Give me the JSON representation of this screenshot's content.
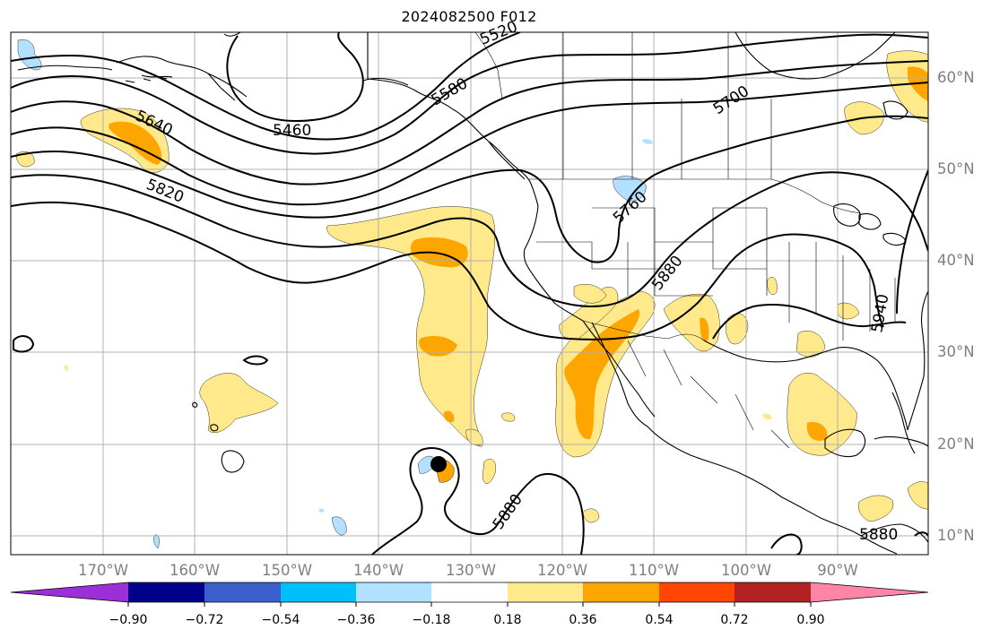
{
  "title": "2024082500 F012",
  "colors": {
    "land_outline": "#000000",
    "contour": "#000000",
    "grid": "#b0b0b0",
    "tick_label": "#7f7f7f",
    "pos_018": "#ffe98a",
    "pos_036": "#ffa500",
    "neg_018": "#b3e0ff"
  },
  "axes": {
    "lat_labels": [
      "60°N",
      "50°N",
      "40°N",
      "30°N",
      "20°N",
      "10°N"
    ],
    "lon_labels": [
      "170°W",
      "160°W",
      "150°W",
      "140°W",
      "130°W",
      "120°W",
      "110°W",
      "100°W",
      "90°W"
    ]
  },
  "contour_labels": [
    "5520",
    "5580",
    "5640",
    "5460",
    "5700",
    "5820",
    "5760",
    "5880",
    "5940",
    "5880",
    "5880"
  ],
  "colorbar": {
    "extend": "both",
    "colors": [
      "#9b30d9",
      "#00008b",
      "#3a5fcd",
      "#00bfff",
      "#b0e2ff",
      "#ffffff",
      "#ffe98a",
      "#ffa500",
      "#ff4500",
      "#b22222",
      "#ff85a8"
    ],
    "tick_labels": [
      "−0.90",
      "−0.72",
      "−0.54",
      "−0.36",
      "−0.18",
      "0.18",
      "0.36",
      "0.54",
      "0.72",
      "0.90"
    ]
  },
  "marker": {
    "name": "storm-center",
    "symbol": "filled-circle"
  }
}
